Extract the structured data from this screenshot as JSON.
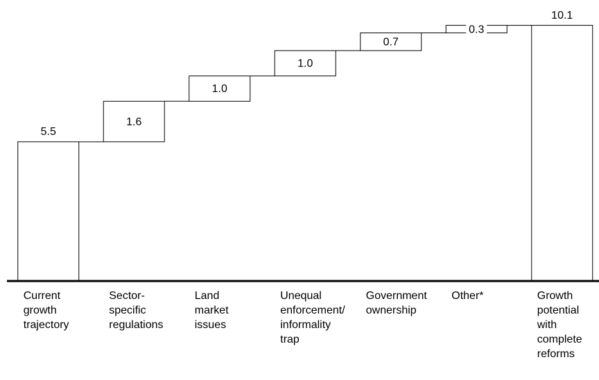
{
  "chart_data": {
    "type": "waterfall",
    "categories": [
      "Current\ngrowth\ntrajectory",
      "Sector-\nspecific\nregulations",
      "Land\nmarket\nissues",
      "Unequal\nenforcement/\ninformality\ntrap",
      "Government\nownership",
      "Other*",
      "Growth\npotential\nwith\ncomplete\nreforms"
    ],
    "values": [
      5.5,
      1.6,
      1.0,
      1.0,
      0.7,
      0.3,
      10.1
    ],
    "value_labels": [
      "5.5",
      "1.6",
      "1.0",
      "1.0",
      "0.7",
      "0.3",
      "10.1"
    ],
    "color": "#ffffff",
    "ylim": [
      0,
      11.1
    ]
  }
}
